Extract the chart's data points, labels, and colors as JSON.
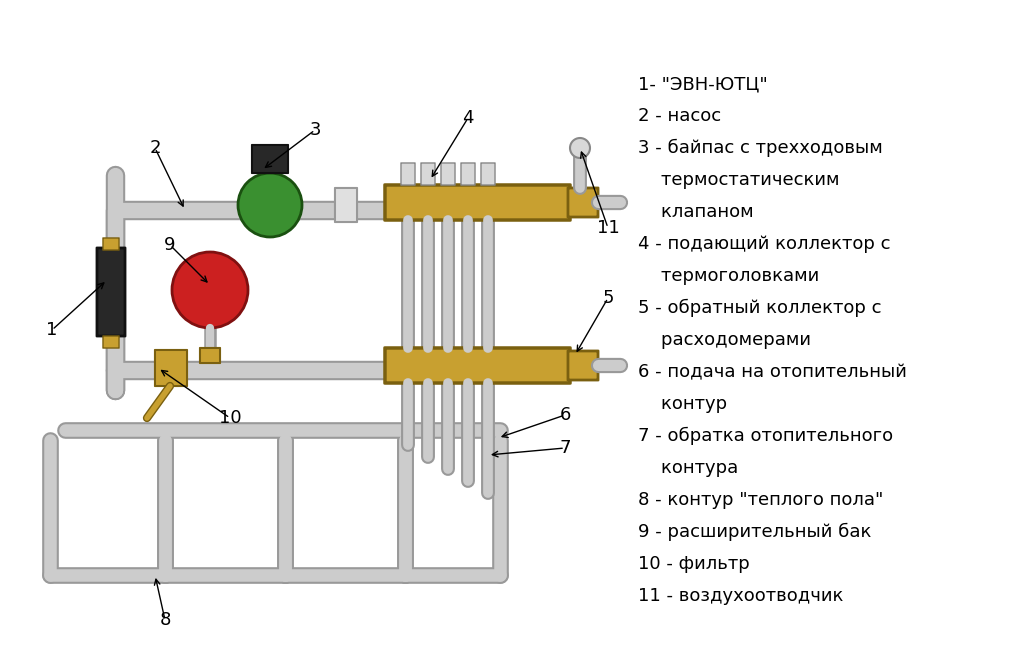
{
  "bg_color": "#ffffff",
  "pipe_color": "#cccccc",
  "pipe_edge_color": "#999999",
  "collector_color": "#c8a030",
  "collector_edge": "#7a6010",
  "green_color": "#3a9030",
  "green_edge": "#1a5010",
  "red_color": "#cc2020",
  "red_edge": "#801010",
  "black_color": "#282828",
  "label_fs": 12,
  "legend_lines": [
    "1- \"ЭВН-ЮТЦ\"",
    "2 - насос",
    "3 - байпас с трехходовым",
    "    термостатическим",
    "    клапаном",
    "4 - подающий коллектор с",
    "    термоголовками",
    "5 - обратный коллектор с",
    "    расходомерами",
    "6 - подача на отопительный",
    "    контур",
    "7 - обратка отопительного",
    "    контура",
    "8 - контур \"теплого пола\"",
    "9 - расширительный бак",
    "10 - фильтр",
    "11 - воздухоотводчик"
  ]
}
